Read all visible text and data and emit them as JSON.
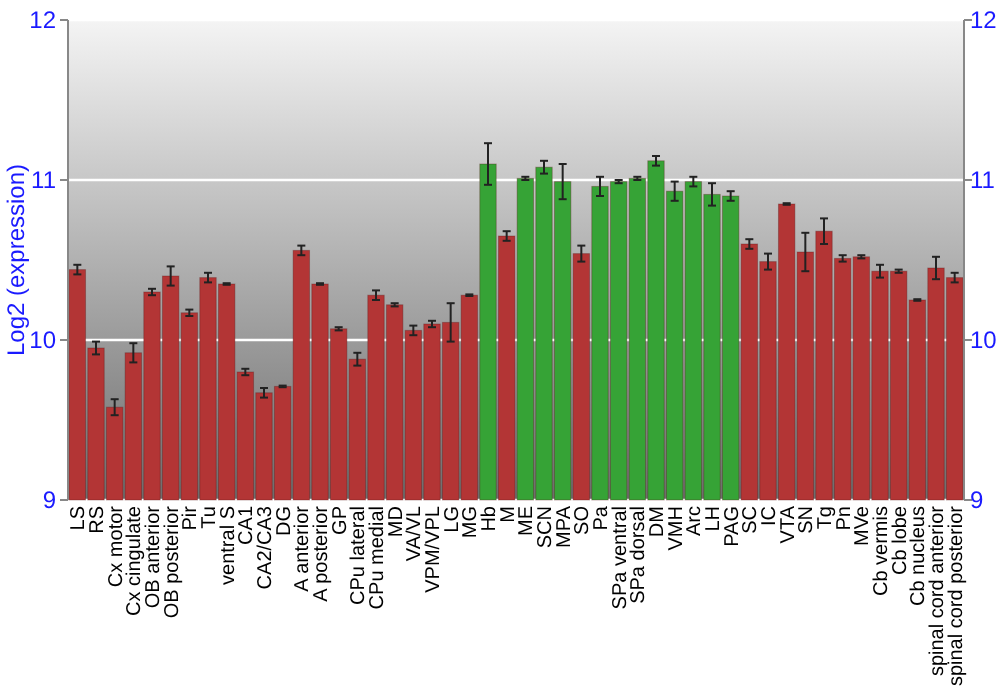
{
  "chart_data": {
    "type": "bar",
    "ylabel": "Log2 (expression)",
    "categories": [
      "LS",
      "RS",
      "Cx motor",
      "Cx cingulate",
      "OB anterior",
      "OB posterior",
      "Pir",
      "Tu",
      "ventral S",
      "CA1",
      "CA2/CA3",
      "DG",
      "A anterior",
      "A posterior",
      "GP",
      "CPu lateral",
      "CPu medial",
      "MD",
      "VA/VL",
      "VPM/VPL",
      "LG",
      "MG",
      "Hb",
      "M",
      "ME",
      "SCN",
      "MPA",
      "SO",
      "Pa",
      "SPa ventral",
      "SPa dorsal",
      "DM",
      "VMH",
      "Arc",
      "LH",
      "PAG",
      "SC",
      "IC",
      "VTA",
      "SN",
      "Tg",
      "Pn",
      "MVe",
      "Cb vermis",
      "Cb lobe",
      "Cb nucleus",
      "spinal cord anterior",
      "spinal cord posterior"
    ],
    "values": [
      10.44,
      9.95,
      9.58,
      9.92,
      10.3,
      10.4,
      10.17,
      10.39,
      10.35,
      9.8,
      9.67,
      9.71,
      10.56,
      10.35,
      10.07,
      9.88,
      10.28,
      10.22,
      10.06,
      10.1,
      10.11,
      10.28,
      11.1,
      10.65,
      11.01,
      11.08,
      10.99,
      10.54,
      10.96,
      10.99,
      11.01,
      11.12,
      10.93,
      10.99,
      10.91,
      10.9,
      10.6,
      10.49,
      10.85,
      10.55,
      10.68,
      10.51,
      10.52,
      10.43,
      10.43,
      10.25,
      10.45,
      10.39
    ],
    "errors": [
      0.03,
      0.04,
      0.05,
      0.06,
      0.02,
      0.06,
      0.02,
      0.03,
      0.005,
      0.02,
      0.03,
      0.005,
      0.03,
      0.005,
      0.01,
      0.04,
      0.03,
      0.01,
      0.03,
      0.02,
      0.12,
      0.005,
      0.13,
      0.03,
      0.01,
      0.04,
      0.11,
      0.05,
      0.06,
      0.01,
      0.01,
      0.03,
      0.06,
      0.03,
      0.07,
      0.03,
      0.03,
      0.05,
      0.005,
      0.12,
      0.08,
      0.02,
      0.01,
      0.04,
      0.01,
      0.005,
      0.07,
      0.03
    ],
    "colors": [
      "#b33535",
      "#b33535",
      "#b33535",
      "#b33535",
      "#b33535",
      "#b33535",
      "#b33535",
      "#b33535",
      "#b33535",
      "#b33535",
      "#b33535",
      "#b33535",
      "#b33535",
      "#b33535",
      "#b33535",
      "#b33535",
      "#b33535",
      "#b33535",
      "#b33535",
      "#b33535",
      "#b33535",
      "#b33535",
      "#36a336",
      "#b33535",
      "#36a336",
      "#36a336",
      "#36a336",
      "#b33535",
      "#36a336",
      "#36a336",
      "#36a336",
      "#36a336",
      "#36a336",
      "#36a336",
      "#36a336",
      "#36a336",
      "#b33535",
      "#b33535",
      "#b33535",
      "#b33535",
      "#b33535",
      "#b33535",
      "#b33535",
      "#b33535",
      "#b33535",
      "#b33535",
      "#b33535",
      "#b33535"
    ],
    "ylim": [
      9,
      12
    ],
    "yticks": [
      9,
      10,
      11,
      12
    ],
    "y2lim": [
      9,
      12
    ],
    "y2ticks": [
      9,
      10,
      11,
      12
    ],
    "grid": "y"
  }
}
